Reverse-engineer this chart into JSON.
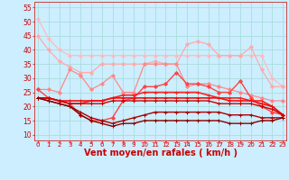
{
  "background_color": "#cceeff",
  "grid_color": "#aadddd",
  "x_labels": [
    "0",
    "1",
    "2",
    "3",
    "4",
    "5",
    "6",
    "7",
    "8",
    "9",
    "10",
    "11",
    "12",
    "13",
    "14",
    "15",
    "16",
    "17",
    "18",
    "19",
    "20",
    "21",
    "22",
    "23"
  ],
  "xlabel": "Vent moyen/en rafales ( km/h )",
  "yticks": [
    10,
    15,
    20,
    25,
    30,
    35,
    40,
    45,
    50,
    55
  ],
  "ylim": [
    8,
    57
  ],
  "xlim": [
    -0.3,
    23.3
  ],
  "series": [
    {
      "color": "#ffbbbb",
      "marker": "D",
      "markersize": 2,
      "linewidth": 0.9,
      "data": [
        51,
        44,
        40,
        38,
        38,
        38,
        38,
        38,
        38,
        38,
        38,
        38,
        38,
        38,
        38,
        38,
        38,
        38,
        38,
        38,
        38,
        38,
        30,
        27
      ]
    },
    {
      "color": "#ffaaaa",
      "marker": "D",
      "markersize": 2,
      "linewidth": 0.9,
      "data": [
        45,
        40,
        36,
        34,
        32,
        32,
        35,
        35,
        35,
        35,
        35,
        36,
        35,
        35,
        42,
        43,
        42,
        38,
        38,
        38,
        41,
        33,
        27,
        27
      ]
    },
    {
      "color": "#ff8888",
      "marker": "D",
      "markersize": 2,
      "linewidth": 0.9,
      "data": [
        26,
        26,
        25,
        33,
        31,
        26,
        28,
        31,
        25,
        25,
        35,
        35,
        35,
        35,
        27,
        28,
        28,
        27,
        26,
        25,
        24,
        23,
        22,
        22
      ]
    },
    {
      "color": "#ff4444",
      "marker": "D",
      "markersize": 2,
      "linewidth": 1.0,
      "data": [
        26,
        23,
        22,
        21,
        17,
        15,
        15,
        16,
        22,
        23,
        27,
        27,
        28,
        32,
        28,
        28,
        27,
        25,
        25,
        29,
        23,
        20,
        18,
        17
      ]
    },
    {
      "color": "#ff2222",
      "marker": "+",
      "markersize": 3,
      "linewidth": 1.2,
      "data": [
        23,
        23,
        22,
        21,
        21,
        22,
        22,
        23,
        24,
        24,
        25,
        25,
        25,
        25,
        25,
        25,
        24,
        23,
        23,
        23,
        22,
        22,
        20,
        17
      ]
    },
    {
      "color": "#ee1111",
      "marker": "+",
      "markersize": 3,
      "linewidth": 1.2,
      "data": [
        23,
        23,
        22,
        22,
        22,
        22,
        22,
        23,
        23,
        23,
        23,
        23,
        23,
        23,
        23,
        23,
        23,
        23,
        22,
        22,
        22,
        21,
        20,
        17
      ]
    },
    {
      "color": "#cc0000",
      "marker": "+",
      "markersize": 3,
      "linewidth": 1.0,
      "data": [
        23,
        23,
        22,
        21,
        21,
        21,
        21,
        22,
        22,
        22,
        22,
        22,
        22,
        22,
        22,
        22,
        22,
        21,
        21,
        21,
        21,
        20,
        19,
        17
      ]
    },
    {
      "color": "#aa0000",
      "marker": "+",
      "markersize": 3,
      "linewidth": 1.0,
      "data": [
        23,
        22,
        21,
        20,
        18,
        16,
        15,
        14,
        15,
        16,
        17,
        18,
        18,
        18,
        18,
        18,
        18,
        18,
        17,
        17,
        17,
        16,
        16,
        16
      ]
    },
    {
      "color": "#880000",
      "marker": "+",
      "markersize": 3,
      "linewidth": 1.0,
      "data": [
        23,
        22,
        21,
        20,
        17,
        15,
        14,
        13,
        14,
        14,
        15,
        15,
        15,
        15,
        15,
        15,
        15,
        15,
        14,
        14,
        14,
        15,
        15,
        16
      ]
    }
  ],
  "arrow_color": "#ff3333",
  "tick_fontsize": 5.5,
  "axis_label_fontsize": 7
}
